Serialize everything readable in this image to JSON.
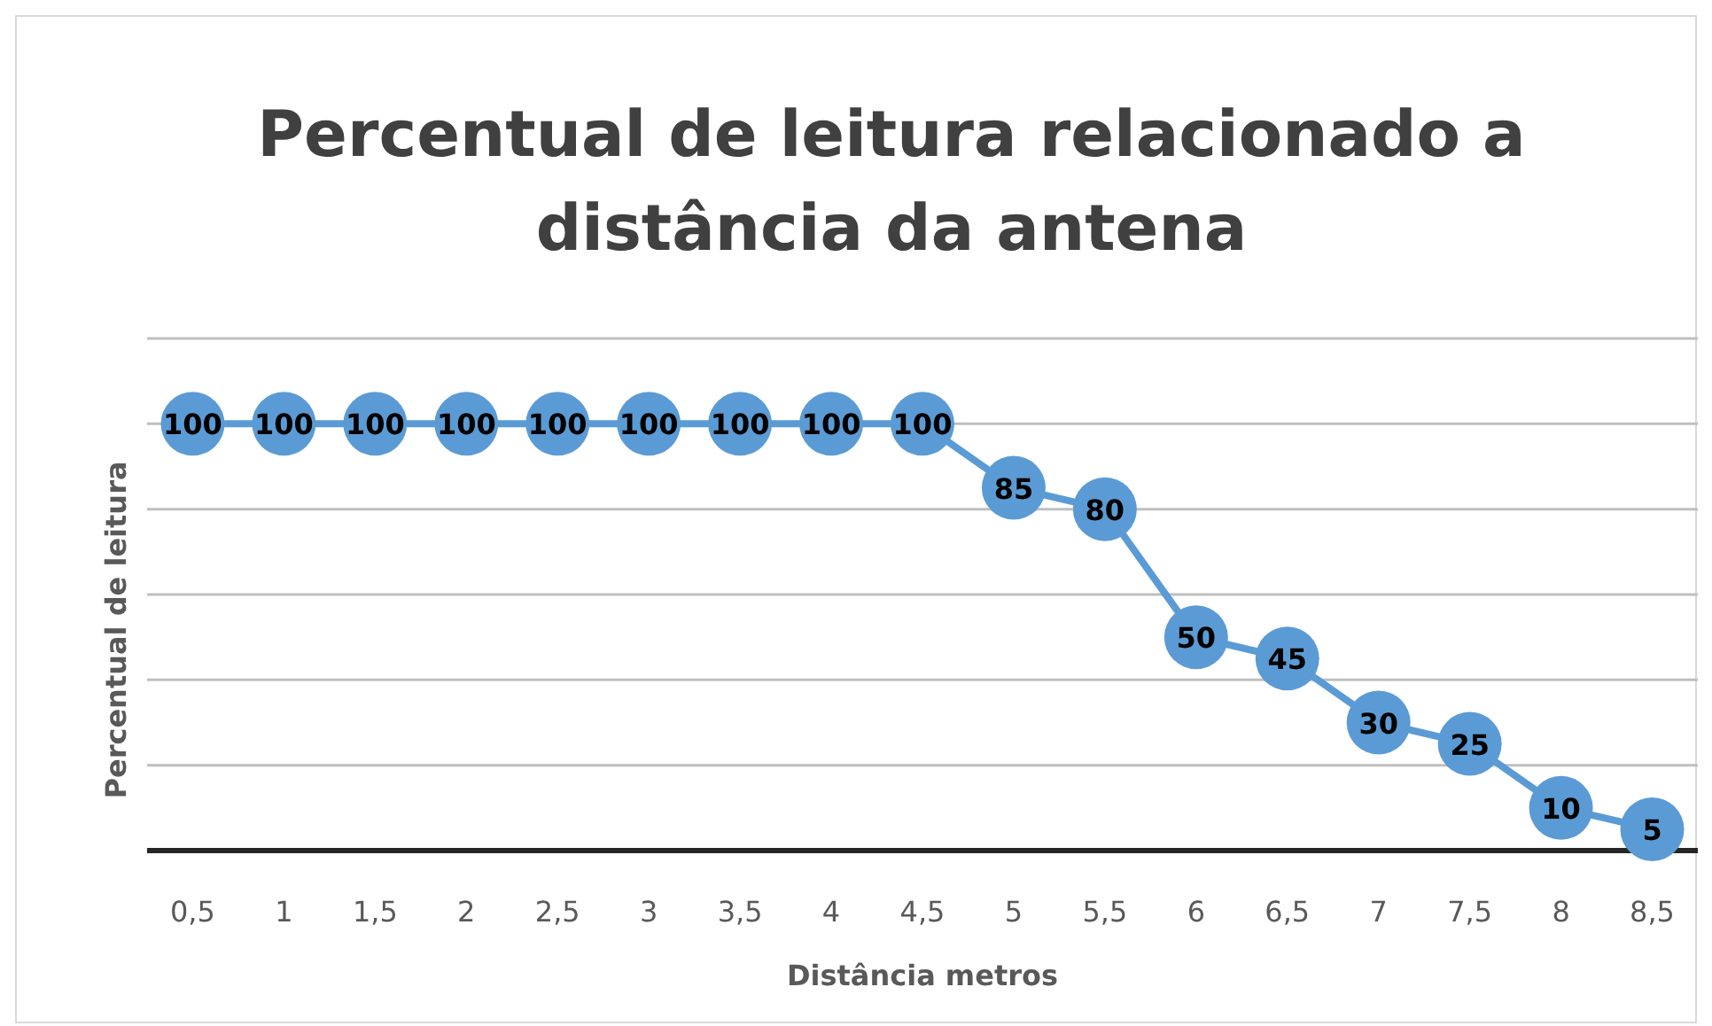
{
  "chart_data": {
    "type": "line",
    "title": "Percentual de leitura relacionado a distância da antena",
    "xlabel": "Distância metros",
    "ylabel": "Percentual de leitura",
    "categories": [
      "0,5",
      "1",
      "1,5",
      "2",
      "2,5",
      "3",
      "3,5",
      "4",
      "4,5",
      "5",
      "5,5",
      "6",
      "6,5",
      "7",
      "7,5",
      "8",
      "8,5"
    ],
    "series": [
      {
        "color": "#5b9bd5",
        "values": [
          100,
          100,
          100,
          100,
          100,
          100,
          100,
          100,
          100,
          85,
          80,
          50,
          45,
          30,
          25,
          10,
          5
        ]
      }
    ],
    "ylim": [
      0,
      120
    ],
    "yticks": [
      {
        "value": 0,
        "label": null
      },
      {
        "value": 20,
        "label": null
      },
      {
        "value": 40,
        "label": null
      },
      {
        "value": 60,
        "label": null
      },
      {
        "value": 80,
        "label": null
      },
      {
        "value": 100,
        "label": null
      },
      {
        "value": 120,
        "label": null
      }
    ],
    "tick_labels": "x",
    "grid": "y",
    "marker": "circle",
    "line_style": "solid",
    "data_labels": true
  }
}
